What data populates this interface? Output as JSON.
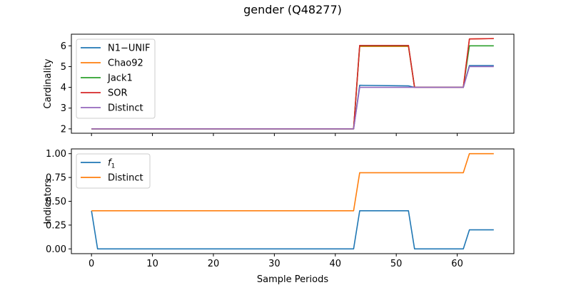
{
  "figure_title": "gender (Q48277)",
  "chart_data": [
    {
      "type": "line",
      "panel": "top",
      "ylabel": "Cardinality",
      "xlabel": "",
      "xlim": [
        -3.3,
        69.3
      ],
      "ylim": [
        1.79,
        6.56
      ],
      "xticks": [
        0,
        10,
        20,
        30,
        40,
        50,
        60
      ],
      "xtick_labels_shown": false,
      "yticks": [
        2,
        3,
        4,
        5,
        6
      ],
      "legend_position": "upper-left",
      "grid": false,
      "series": [
        {
          "name": "N1−UNIF",
          "color": "#1f77b4",
          "x": [
            0,
            43,
            44,
            52,
            53,
            61,
            62,
            66
          ],
          "y": [
            2,
            2,
            4.1,
            4.07,
            4,
            4,
            5.05,
            5.05
          ]
        },
        {
          "name": "Chao92",
          "color": "#ff7f0e",
          "x": [
            0,
            43,
            44,
            52,
            53,
            61,
            62,
            66
          ],
          "y": [
            2,
            2,
            5.97,
            5.97,
            4,
            4,
            6.33,
            6.35
          ]
        },
        {
          "name": "Jack1",
          "color": "#2ca02c",
          "x": [
            0,
            43,
            44,
            52,
            53,
            61,
            62,
            66
          ],
          "y": [
            2,
            2,
            6,
            6,
            4,
            4,
            6,
            6
          ]
        },
        {
          "name": "SOR",
          "color": "#d62728",
          "x": [
            0,
            43,
            44,
            52,
            53,
            61,
            62,
            66
          ],
          "y": [
            2,
            2,
            6.02,
            6.02,
            4,
            4,
            6.33,
            6.35
          ]
        },
        {
          "name": "Distinct",
          "color": "#9467bd",
          "x": [
            0,
            43,
            44,
            52,
            53,
            61,
            62,
            66
          ],
          "y": [
            2,
            2,
            4,
            4,
            4,
            4,
            5,
            5
          ]
        }
      ]
    },
    {
      "type": "line",
      "panel": "bottom",
      "ylabel": "Indicators",
      "xlabel": "Sample Periods",
      "xlim": [
        -3.3,
        69.3
      ],
      "ylim": [
        -0.05,
        1.05
      ],
      "xticks": [
        0,
        10,
        20,
        30,
        40,
        50,
        60
      ],
      "xtick_labels_shown": true,
      "yticks": [
        0.0,
        0.25,
        0.5,
        0.75,
        1.0
      ],
      "ytick_labels": [
        "0.00",
        "0.25",
        "0.50",
        "0.75",
        "1.00"
      ],
      "legend_position": "upper-left",
      "grid": false,
      "series": [
        {
          "name": "f1",
          "display_name": "f",
          "display_sub": "1",
          "color": "#1f77b4",
          "x": [
            0,
            1,
            43,
            44,
            52,
            53,
            61,
            62,
            66
          ],
          "y": [
            0.4,
            0,
            0,
            0.4,
            0.4,
            0,
            0,
            0.2,
            0.2
          ]
        },
        {
          "name": "Distinct",
          "color": "#ff7f0e",
          "x": [
            0,
            43,
            44,
            61,
            62,
            66
          ],
          "y": [
            0.4,
            0.4,
            0.8,
            0.8,
            1.0,
            1.0
          ]
        }
      ]
    }
  ]
}
